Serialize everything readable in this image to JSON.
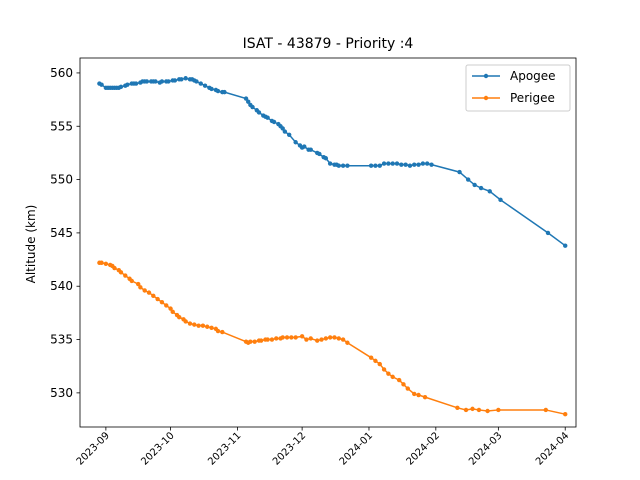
{
  "chart_data": {
    "type": "line",
    "title": "ISAT - 43879 - Priority :4",
    "xlabel": "",
    "ylabel": "Altitude (km)",
    "x_ticks": [
      "2023-09",
      "2023-10",
      "2023-11",
      "2023-12",
      "2024-01",
      "2024-02",
      "2024-03",
      "2024-04"
    ],
    "y_ticks": [
      530,
      535,
      540,
      545,
      550,
      555,
      560
    ],
    "xlim": [
      "2023-08-20",
      "2024-04-06"
    ],
    "ylim": [
      526.8,
      561.4
    ],
    "grid": false,
    "legend_position": "top-right",
    "colors": {
      "apogee": "#1f77b4",
      "perigee": "#ff7f0e"
    },
    "series": [
      {
        "name": "Apogee",
        "color": "#1f77b4",
        "points": [
          [
            "2023-08-29",
            559.0
          ],
          [
            "2023-08-30",
            558.9
          ],
          [
            "2023-09-01",
            558.6
          ],
          [
            "2023-09-02",
            558.6
          ],
          [
            "2023-09-03",
            558.6
          ],
          [
            "2023-09-04",
            558.6
          ],
          [
            "2023-09-05",
            558.6
          ],
          [
            "2023-09-06",
            558.6
          ],
          [
            "2023-09-07",
            558.6
          ],
          [
            "2023-09-08",
            558.7
          ],
          [
            "2023-09-10",
            558.8
          ],
          [
            "2023-09-11",
            558.9
          ],
          [
            "2023-09-13",
            559.0
          ],
          [
            "2023-09-14",
            559.0
          ],
          [
            "2023-09-15",
            559.0
          ],
          [
            "2023-09-17",
            559.1
          ],
          [
            "2023-09-18",
            559.2
          ],
          [
            "2023-09-19",
            559.2
          ],
          [
            "2023-09-20",
            559.2
          ],
          [
            "2023-09-22",
            559.2
          ],
          [
            "2023-09-23",
            559.2
          ],
          [
            "2023-09-24",
            559.2
          ],
          [
            "2023-09-26",
            559.1
          ],
          [
            "2023-09-27",
            559.2
          ],
          [
            "2023-09-29",
            559.2
          ],
          [
            "2023-09-30",
            559.2
          ],
          [
            "2023-10-02",
            559.3
          ],
          [
            "2023-10-03",
            559.3
          ],
          [
            "2023-10-05",
            559.4
          ],
          [
            "2023-10-06",
            559.4
          ],
          [
            "2023-10-08",
            559.5
          ],
          [
            "2023-10-10",
            559.4
          ],
          [
            "2023-10-11",
            559.4
          ],
          [
            "2023-10-12",
            559.3
          ],
          [
            "2023-10-13",
            559.2
          ],
          [
            "2023-10-15",
            559.0
          ],
          [
            "2023-10-17",
            558.8
          ],
          [
            "2023-10-19",
            558.6
          ],
          [
            "2023-10-20",
            558.5
          ],
          [
            "2023-10-22",
            558.4
          ],
          [
            "2023-10-23",
            558.3
          ],
          [
            "2023-10-25",
            558.2
          ],
          [
            "2023-10-26",
            558.2
          ],
          [
            "2023-11-05",
            557.6
          ],
          [
            "2023-11-06",
            557.3
          ],
          [
            "2023-11-07",
            557.0
          ],
          [
            "2023-11-08",
            556.8
          ],
          [
            "2023-11-10",
            556.5
          ],
          [
            "2023-11-11",
            556.3
          ],
          [
            "2023-11-13",
            556.0
          ],
          [
            "2023-11-14",
            555.9
          ],
          [
            "2023-11-15",
            555.8
          ],
          [
            "2023-11-17",
            555.5
          ],
          [
            "2023-11-18",
            555.4
          ],
          [
            "2023-11-20",
            555.2
          ],
          [
            "2023-11-21",
            555.0
          ],
          [
            "2023-11-22",
            554.8
          ],
          [
            "2023-11-23",
            554.5
          ],
          [
            "2023-11-25",
            554.2
          ],
          [
            "2023-11-28",
            553.5
          ],
          [
            "2023-11-30",
            553.2
          ],
          [
            "2023-12-01",
            553.0
          ],
          [
            "2023-12-02",
            553.1
          ],
          [
            "2023-12-04",
            552.8
          ],
          [
            "2023-12-05",
            552.8
          ],
          [
            "2023-12-08",
            552.5
          ],
          [
            "2023-12-09",
            552.4
          ],
          [
            "2023-12-11",
            552.1
          ],
          [
            "2023-12-12",
            552.0
          ],
          [
            "2023-12-14",
            551.5
          ],
          [
            "2023-12-16",
            551.4
          ],
          [
            "2023-12-17",
            551.4
          ],
          [
            "2023-12-18",
            551.3
          ],
          [
            "2023-12-20",
            551.3
          ],
          [
            "2023-12-22",
            551.3
          ],
          [
            "2024-01-02",
            551.3
          ],
          [
            "2024-01-04",
            551.3
          ],
          [
            "2024-01-06",
            551.3
          ],
          [
            "2024-01-08",
            551.5
          ],
          [
            "2024-01-10",
            551.5
          ],
          [
            "2024-01-12",
            551.5
          ],
          [
            "2024-01-14",
            551.5
          ],
          [
            "2024-01-16",
            551.4
          ],
          [
            "2024-01-18",
            551.4
          ],
          [
            "2024-01-20",
            551.3
          ],
          [
            "2024-01-22",
            551.4
          ],
          [
            "2024-01-24",
            551.4
          ],
          [
            "2024-01-26",
            551.5
          ],
          [
            "2024-01-28",
            551.5
          ],
          [
            "2024-01-30",
            551.4
          ],
          [
            "2024-02-12",
            550.7
          ],
          [
            "2024-02-16",
            550.0
          ],
          [
            "2024-02-19",
            549.5
          ],
          [
            "2024-02-22",
            549.2
          ],
          [
            "2024-02-26",
            548.9
          ],
          [
            "2024-03-02",
            548.1
          ],
          [
            "2024-03-24",
            545.0
          ],
          [
            "2024-04-01",
            543.8
          ]
        ]
      },
      {
        "name": "Perigee",
        "color": "#ff7f0e",
        "points": [
          [
            "2023-08-29",
            542.2
          ],
          [
            "2023-08-30",
            542.2
          ],
          [
            "2023-09-01",
            542.1
          ],
          [
            "2023-09-03",
            542.0
          ],
          [
            "2023-09-04",
            541.9
          ],
          [
            "2023-09-05",
            541.7
          ],
          [
            "2023-09-07",
            541.5
          ],
          [
            "2023-09-08",
            541.3
          ],
          [
            "2023-09-10",
            541.0
          ],
          [
            "2023-09-12",
            540.7
          ],
          [
            "2023-09-13",
            540.5
          ],
          [
            "2023-09-16",
            540.2
          ],
          [
            "2023-09-17",
            539.9
          ],
          [
            "2023-09-19",
            539.6
          ],
          [
            "2023-09-21",
            539.4
          ],
          [
            "2023-09-23",
            539.1
          ],
          [
            "2023-09-25",
            538.8
          ],
          [
            "2023-09-27",
            538.5
          ],
          [
            "2023-09-29",
            538.2
          ],
          [
            "2023-10-01",
            537.9
          ],
          [
            "2023-10-02",
            537.6
          ],
          [
            "2023-10-04",
            537.3
          ],
          [
            "2023-10-05",
            537.1
          ],
          [
            "2023-10-07",
            536.9
          ],
          [
            "2023-10-08",
            536.7
          ],
          [
            "2023-10-10",
            536.5
          ],
          [
            "2023-10-12",
            536.4
          ],
          [
            "2023-10-14",
            536.3
          ],
          [
            "2023-10-16",
            536.3
          ],
          [
            "2023-10-18",
            536.2
          ],
          [
            "2023-10-20",
            536.1
          ],
          [
            "2023-10-22",
            536.0
          ],
          [
            "2023-10-23",
            535.8
          ],
          [
            "2023-10-25",
            535.7
          ],
          [
            "2023-11-05",
            534.8
          ],
          [
            "2023-11-06",
            534.7
          ],
          [
            "2023-11-07",
            534.8
          ],
          [
            "2023-11-09",
            534.8
          ],
          [
            "2023-11-11",
            534.9
          ],
          [
            "2023-11-12",
            534.9
          ],
          [
            "2023-11-14",
            535.0
          ],
          [
            "2023-11-15",
            535.0
          ],
          [
            "2023-11-17",
            535.0
          ],
          [
            "2023-11-19",
            535.1
          ],
          [
            "2023-11-21",
            535.1
          ],
          [
            "2023-11-22",
            535.2
          ],
          [
            "2023-11-24",
            535.2
          ],
          [
            "2023-11-26",
            535.2
          ],
          [
            "2023-11-28",
            535.2
          ],
          [
            "2023-12-01",
            535.3
          ],
          [
            "2023-12-03",
            535.0
          ],
          [
            "2023-12-05",
            535.1
          ],
          [
            "2023-12-08",
            534.9
          ],
          [
            "2023-12-10",
            535.0
          ],
          [
            "2023-12-12",
            535.1
          ],
          [
            "2023-12-14",
            535.2
          ],
          [
            "2023-12-16",
            535.2
          ],
          [
            "2023-12-18",
            535.1
          ],
          [
            "2023-12-20",
            535.0
          ],
          [
            "2023-12-22",
            534.7
          ],
          [
            "2024-01-02",
            533.3
          ],
          [
            "2024-01-04",
            533.0
          ],
          [
            "2024-01-06",
            532.7
          ],
          [
            "2024-01-08",
            532.2
          ],
          [
            "2024-01-10",
            531.8
          ],
          [
            "2024-01-12",
            531.5
          ],
          [
            "2024-01-15",
            531.2
          ],
          [
            "2024-01-17",
            530.8
          ],
          [
            "2024-01-19",
            530.4
          ],
          [
            "2024-01-22",
            529.9
          ],
          [
            "2024-01-24",
            529.8
          ],
          [
            "2024-01-27",
            529.6
          ],
          [
            "2024-02-11",
            528.6
          ],
          [
            "2024-02-15",
            528.4
          ],
          [
            "2024-02-18",
            528.5
          ],
          [
            "2024-02-21",
            528.4
          ],
          [
            "2024-02-25",
            528.3
          ],
          [
            "2024-03-01",
            528.4
          ],
          [
            "2024-03-23",
            528.4
          ],
          [
            "2024-04-01",
            528.0
          ]
        ]
      }
    ]
  }
}
